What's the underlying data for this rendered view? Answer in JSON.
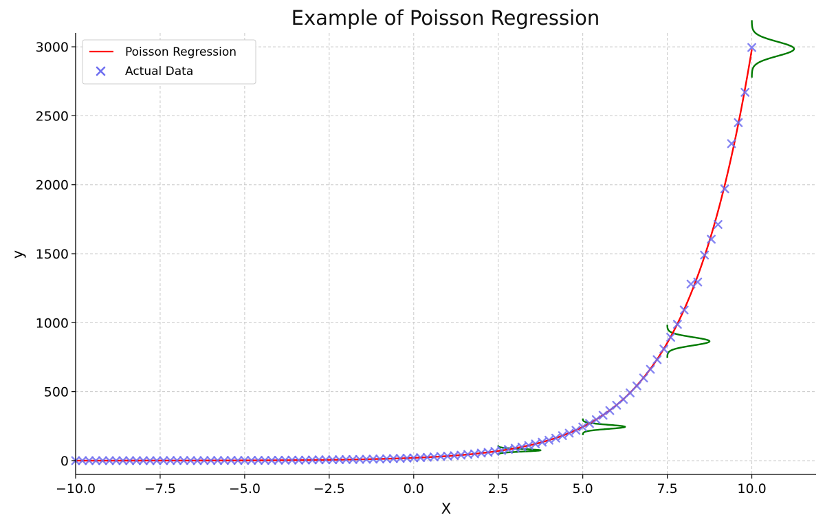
{
  "chart_data": {
    "type": "line",
    "title": "Example of Poisson Regression",
    "xlabel": "X",
    "ylabel": "y",
    "xlim": [
      -10,
      11.9
    ],
    "ylim": [
      -100,
      3100
    ],
    "grid": true,
    "legend_position": "top-left",
    "x_ticks": [
      -10.0,
      -7.5,
      -5.0,
      -2.5,
      0.0,
      2.5,
      5.0,
      7.5,
      10.0
    ],
    "x_tick_labels": [
      "−10.0",
      "−7.5",
      "−5.0",
      "−2.5",
      "0.0",
      "2.5",
      "5.0",
      "7.5",
      "10.0"
    ],
    "y_ticks": [
      0,
      500,
      1000,
      1500,
      2000,
      2500,
      3000
    ],
    "y_tick_labels": [
      "0",
      "500",
      "1000",
      "1500",
      "2000",
      "2500",
      "3000"
    ],
    "series": [
      {
        "name": "Poisson Regression",
        "kind": "line",
        "color": "#ff0000",
        "model": "y = exp(b0 + b1*x)",
        "b0": 3.0,
        "b1": 0.5
      },
      {
        "name": "Actual Data",
        "kind": "scatter",
        "marker": "x",
        "color": "#6f6ff0",
        "x": [
          -10.0,
          -9.8,
          -9.6,
          -9.4,
          -9.2,
          -9.0,
          -8.8,
          -8.6,
          -8.4,
          -8.2,
          -8.0,
          -7.8,
          -7.6,
          -7.4,
          -7.2,
          -7.0,
          -6.8,
          -6.6,
          -6.4,
          -6.2,
          -6.0,
          -5.8,
          -5.6,
          -5.4,
          -5.2,
          -5.0,
          -4.8,
          -4.6,
          -4.4,
          -4.2,
          -4.0,
          -3.8,
          -3.6,
          -3.4,
          -3.2,
          -3.0,
          -2.8,
          -2.6,
          -2.4,
          -2.2,
          -2.0,
          -1.8,
          -1.6,
          -1.4,
          -1.2,
          -1.0,
          -0.8,
          -0.6,
          -0.4,
          -0.2,
          0.0,
          0.2,
          0.4,
          0.6,
          0.8,
          1.0,
          1.2,
          1.4,
          1.6,
          1.8,
          2.0,
          2.2,
          2.4,
          2.6,
          2.8,
          3.0,
          3.2,
          3.4,
          3.6,
          3.8,
          4.0,
          4.2,
          4.4,
          4.6,
          4.8,
          5.0,
          5.2,
          5.4,
          5.6,
          5.8,
          6.0,
          6.2,
          6.4,
          6.6,
          6.8,
          7.0,
          7.2,
          7.4,
          7.6,
          7.8,
          8.0,
          8.2,
          8.4,
          8.6,
          8.8,
          9.0,
          9.2,
          9.4,
          9.6,
          9.8,
          10.0
        ],
        "y": [
          0,
          0,
          0,
          0,
          0,
          0,
          0,
          0,
          0,
          0,
          0,
          0,
          0,
          0,
          1,
          1,
          1,
          1,
          0,
          1,
          1,
          1,
          1,
          2,
          1,
          2,
          2,
          2,
          2,
          2,
          3,
          3,
          4,
          3,
          4,
          5,
          6,
          6,
          6,
          7,
          8,
          8,
          9,
          10,
          11,
          12,
          13,
          15,
          16,
          18,
          20,
          22,
          24,
          27,
          30,
          33,
          36,
          40,
          45,
          49,
          55,
          60,
          67,
          74,
          81,
          90,
          99,
          110,
          121,
          134,
          148,
          163,
          181,
          199,
          220,
          244,
          269,
          297,
          329,
          363,
          402,
          444,
          491,
          542,
          599,
          662,
          732,
          809,
          894,
          988,
          1092,
          1280,
          1295,
          1490,
          1605,
          1712,
          1970,
          2298,
          2450,
          2670,
          2995
        ]
      },
      {
        "name": "",
        "kind": "distribution-overlay",
        "color": "#007a00",
        "curves": [
          {
            "x0": 2.5,
            "y_center": 75,
            "sigma_y": 9,
            "height_x": 1.25
          },
          {
            "x0": 5.0,
            "y_center": 245,
            "sigma_y": 15,
            "height_x": 1.25
          },
          {
            "x0": 7.5,
            "y_center": 865,
            "sigma_y": 30,
            "height_x": 1.25
          },
          {
            "x0": 10.0,
            "y_center": 2985,
            "sigma_y": 52,
            "height_x": 1.25
          }
        ]
      }
    ],
    "legend": [
      {
        "label": "Poisson Regression",
        "symbol": "line",
        "color": "#ff0000"
      },
      {
        "label": "Actual Data",
        "symbol": "x",
        "color": "#6f6ff0"
      }
    ]
  }
}
